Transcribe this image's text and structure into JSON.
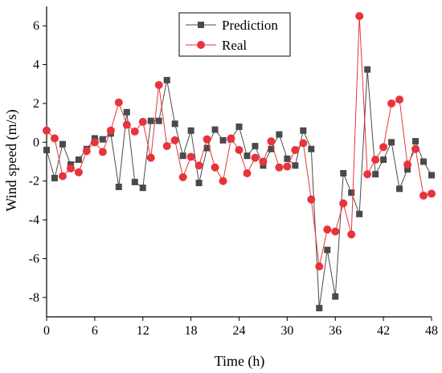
{
  "chart_data": {
    "type": "line",
    "xlabel": "Time (h)",
    "ylabel": "Wind speed (m/s)",
    "xlim": [
      0,
      48
    ],
    "ylim": [
      -9,
      7
    ],
    "xticks": [
      0,
      6,
      12,
      18,
      24,
      30,
      36,
      42,
      48
    ],
    "yticks": [
      -8,
      -6,
      -4,
      -2,
      0,
      2,
      4,
      6
    ],
    "grid": false,
    "legend_position": "top-center",
    "x": [
      0,
      1,
      2,
      3,
      4,
      5,
      6,
      7,
      8,
      9,
      10,
      11,
      12,
      13,
      14,
      15,
      16,
      17,
      18,
      19,
      20,
      21,
      22,
      23,
      24,
      25,
      26,
      27,
      28,
      29,
      30,
      31,
      32,
      33,
      34,
      35,
      36,
      37,
      38,
      39,
      40,
      41,
      42,
      43,
      44,
      45,
      46,
      47,
      48
    ],
    "series": [
      {
        "name": "Prediction",
        "color": "#4a4a4a",
        "marker": "square",
        "values": [
          -0.4,
          -1.85,
          -0.1,
          -1.15,
          -0.9,
          -0.35,
          0.2,
          0.15,
          0.45,
          -2.3,
          1.55,
          -2.05,
          -2.35,
          1.1,
          1.1,
          3.2,
          0.95,
          -0.7,
          0.6,
          -2.1,
          -0.3,
          0.65,
          0.1,
          0.15,
          0.8,
          -0.7,
          -0.2,
          -1.2,
          -0.35,
          0.4,
          -0.85,
          -1.2,
          0.6,
          -0.35,
          -8.55,
          -5.55,
          -7.95,
          -1.6,
          -2.6,
          -3.7,
          3.75,
          -1.65,
          -0.9,
          0.0,
          -2.4,
          -1.4,
          0.05,
          -1.0,
          -1.7
        ]
      },
      {
        "name": "Real",
        "color": "#e8333b",
        "marker": "circle",
        "values": [
          0.6,
          0.2,
          -1.75,
          -1.35,
          -1.55,
          -0.45,
          0.0,
          -0.5,
          0.6,
          2.05,
          0.9,
          0.55,
          1.05,
          -0.8,
          2.95,
          -0.2,
          0.1,
          -1.8,
          -0.75,
          -1.2,
          0.15,
          -1.3,
          -2.0,
          0.2,
          -0.4,
          -1.6,
          -0.8,
          -1.0,
          0.05,
          -1.3,
          -1.25,
          -0.4,
          -0.05,
          -2.95,
          -6.4,
          -4.5,
          -4.6,
          -3.15,
          -4.75,
          6.5,
          -1.65,
          -0.9,
          -0.25,
          2.0,
          2.2,
          -1.15,
          -0.35,
          -2.75,
          -2.65
        ]
      }
    ]
  }
}
